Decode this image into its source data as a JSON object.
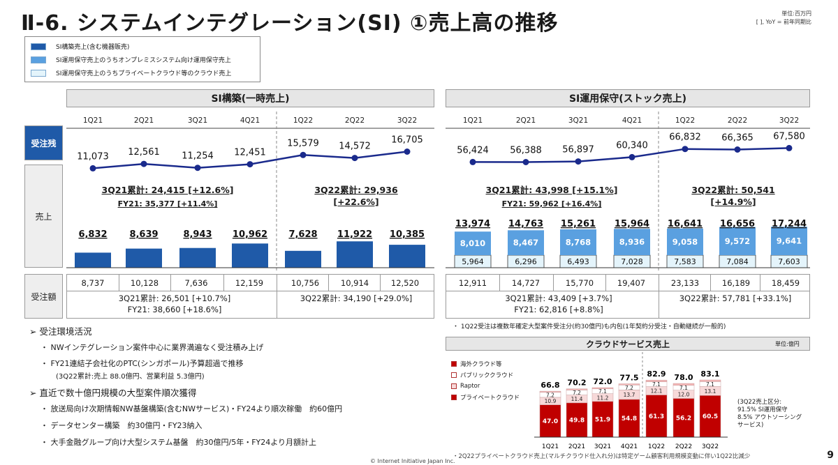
{
  "header": {
    "title": "Ⅱ-6. システムインテグレーション(SI) ①売上高の推移",
    "unit_line1": "単位:百万円",
    "unit_line2": "[ ], YoY = 前年同期比"
  },
  "legend": {
    "items": [
      {
        "label": "SI構築売上(含む機器販売)",
        "color": "#1f5aa8"
      },
      {
        "label": "SI運用保守売上のうちオンプレミスシステム向け運用保守売上",
        "color": "#5aa0e0"
      },
      {
        "label": "SI運用保守売上のうちプライベートクラウド等のクラウド売上",
        "color": "#e4f4fb"
      }
    ]
  },
  "row_labels": {
    "backlog": "受注残",
    "sales": "売上",
    "orders": "受注額"
  },
  "si_build": {
    "panel_title": "SI構築(一時売上)",
    "sum_3q21": "3Q21累計: 24,415 [+12.6%]",
    "fy21": "FY21: 35,377 [+11.4%]",
    "sum_3q22_line1": "3Q22累計: 29,936",
    "sum_3q22_line2": "[+22.6%]",
    "orders_sum_3q21": "3Q21累計: 26,501 [+10.7%]",
    "orders_fy21": "FY21: 38,660 [+18.6%]",
    "orders_sum_3q22": "3Q22累計: 34,190 [+29.0%]",
    "orders_values": [
      "8,737",
      "10,128",
      "7,636",
      "12,159",
      "10,756",
      "10,914",
      "12,520"
    ]
  },
  "si_maint": {
    "panel_title": "SI運用保守(ストック売上)",
    "sum_3q21": "3Q21累計: 43,998 [+15.1%]",
    "fy21": "FY21: 59,962 [+16.4%]",
    "sum_3q22_line1": "3Q22累計: 50,541",
    "sum_3q22_line2": "[+14.9%]",
    "orders_sum_3q21": "3Q21累計: 43,409 [+3.7%]",
    "orders_fy21": "FY21: 62,816 [+8.8%]",
    "orders_sum_3q22": "3Q22累計: 57,781 [+33.1%]",
    "orders_values": [
      "12,911",
      "14,727",
      "15,770",
      "19,407",
      "23,133",
      "16,189",
      "18,459"
    ],
    "note": "・ 1Q22受注は複数年確定大型案件受注分(約30億円)も内包(1年契約分受注・自動継続が一般的)"
  },
  "left_notes": {
    "heading1": "➢ 受注環境活況",
    "items1": [
      "・ NWインテグレーション案件中心に業界満遍なく受注積み上げ",
      "・ FY21連結子会社化のPTC(シンガポール)予算超過で推移",
      "(3Q22累計:売上 88.0億円、営業利益 5.3億円)"
    ],
    "heading2": "➢ 直近で数十億円規模の大型案件順次獲得",
    "items2": [
      "・ 放送局向け次期情報NW基盤構築(含むNWサービス)・FY24より順次稼働　約60億円",
      "・ データセンター構築　約30億円・FY23納入",
      "・ 大手金融グループ向け大型システム基盤　約30億円/5年・FY24より月額計上"
    ]
  },
  "cloud": {
    "title": "クラウドサービス売上",
    "unit": "単位:億円",
    "legend": [
      {
        "label": "海外クラウド等",
        "color": "#f4b6b6"
      },
      {
        "label": "パブリッククラウド",
        "color": "#ffffff"
      },
      {
        "label": "Raptor",
        "color": "#f7d9d9"
      },
      {
        "label": "プライベートクラウド",
        "color": "#c00000"
      }
    ],
    "side_note": [
      "(3Q22売上区分:",
      "91.5% SI運用保守",
      "8.5% アウトソーシング",
      "サービス)"
    ],
    "footnote": "・2Q22プライベートクラウド売上(マルチクラウド仕入れ分)は特定ゲーム顧客利用規模変動に伴い1Q22比減少"
  },
  "footer": {
    "copyright": "© Internet Initiative Japan Inc.",
    "page": "9"
  },
  "chart_data": [
    {
      "type": "line",
      "title": "受注残 (SI構築)",
      "categories": [
        "1Q21",
        "2Q21",
        "3Q21",
        "4Q21",
        "1Q22",
        "2Q22",
        "3Q22"
      ],
      "values": [
        11073,
        12561,
        11254,
        12451,
        15579,
        14572,
        16705
      ],
      "labels": [
        "11,073",
        "12,561",
        "11,254",
        "12,451",
        "15,579",
        "14,572",
        "16,705"
      ]
    },
    {
      "type": "bar",
      "title": "売上 (SI構築)",
      "categories": [
        "1Q21",
        "2Q21",
        "3Q21",
        "4Q21",
        "1Q22",
        "2Q22",
        "3Q22"
      ],
      "values": [
        6832,
        8639,
        8943,
        10962,
        7628,
        11922,
        10385
      ],
      "labels": [
        "6,832",
        "8,639",
        "8,943",
        "10,962",
        "7,628",
        "11,922",
        "10,385"
      ],
      "color": "#1f5aa8"
    },
    {
      "type": "line",
      "title": "受注残 (SI運用保守)",
      "categories": [
        "1Q21",
        "2Q21",
        "3Q21",
        "4Q21",
        "1Q22",
        "2Q22",
        "3Q22"
      ],
      "values": [
        56424,
        56388,
        56897,
        60340,
        66832,
        66365,
        67580
      ],
      "labels": [
        "56,424",
        "56,388",
        "56,897",
        "60,340",
        "66,832",
        "66,365",
        "67,580"
      ]
    },
    {
      "type": "bar",
      "title": "売上 (SI運用保守)",
      "stacked": true,
      "categories": [
        "1Q21",
        "2Q21",
        "3Q21",
        "4Q21",
        "1Q22",
        "2Q22",
        "3Q22"
      ],
      "totals": [
        13974,
        14763,
        15261,
        15964,
        16641,
        16656,
        17244
      ],
      "total_labels": [
        "13,974",
        "14,763",
        "15,261",
        "15,964",
        "16,641",
        "16,656",
        "17,244"
      ],
      "series": [
        {
          "values": [
            5964,
            6296,
            6493,
            7028,
            7583,
            7084,
            7603
          ],
          "labels": [
            "5,964",
            "6,296",
            "6,493",
            "7,028",
            "7,583",
            "7,084",
            "7,603"
          ],
          "color": "#e4f4fb"
        },
        {
          "values": [
            8010,
            8467,
            8768,
            8936,
            9058,
            9572,
            9641
          ],
          "labels": [
            "8,010",
            "8,467",
            "8,768",
            "8,936",
            "9,058",
            "9,572",
            "9,641"
          ],
          "color": "#5aa0e0"
        }
      ]
    },
    {
      "type": "bar",
      "title": "クラウドサービス売上",
      "stacked": true,
      "categories": [
        "1Q21",
        "2Q21",
        "3Q21",
        "4Q21",
        "1Q22",
        "2Q22",
        "3Q22"
      ],
      "totals": [
        66.8,
        70.2,
        72.0,
        77.5,
        82.9,
        78.0,
        83.1
      ],
      "series": [
        {
          "name": "プライベートクラウド",
          "values": [
            47.0,
            49.8,
            51.9,
            54.8,
            61.3,
            56.2,
            60.5
          ],
          "color": "#c00000"
        },
        {
          "name": "Raptor",
          "values": [
            10.9,
            11.4,
            11.2,
            13.7,
            12.1,
            12.0,
            13.1
          ],
          "color": "#f7d9d9"
        },
        {
          "name": "パブリッククラウド",
          "values": [
            7.2,
            7.2,
            7.1,
            7.2,
            7.1,
            7.1,
            7.1
          ],
          "color": "#ffffff"
        },
        {
          "name": "海外クラウド等",
          "values": [
            1.7,
            1.8,
            1.8,
            1.8,
            2.4,
            2.7,
            2.4
          ],
          "color": "#f4b6b6"
        }
      ]
    }
  ]
}
